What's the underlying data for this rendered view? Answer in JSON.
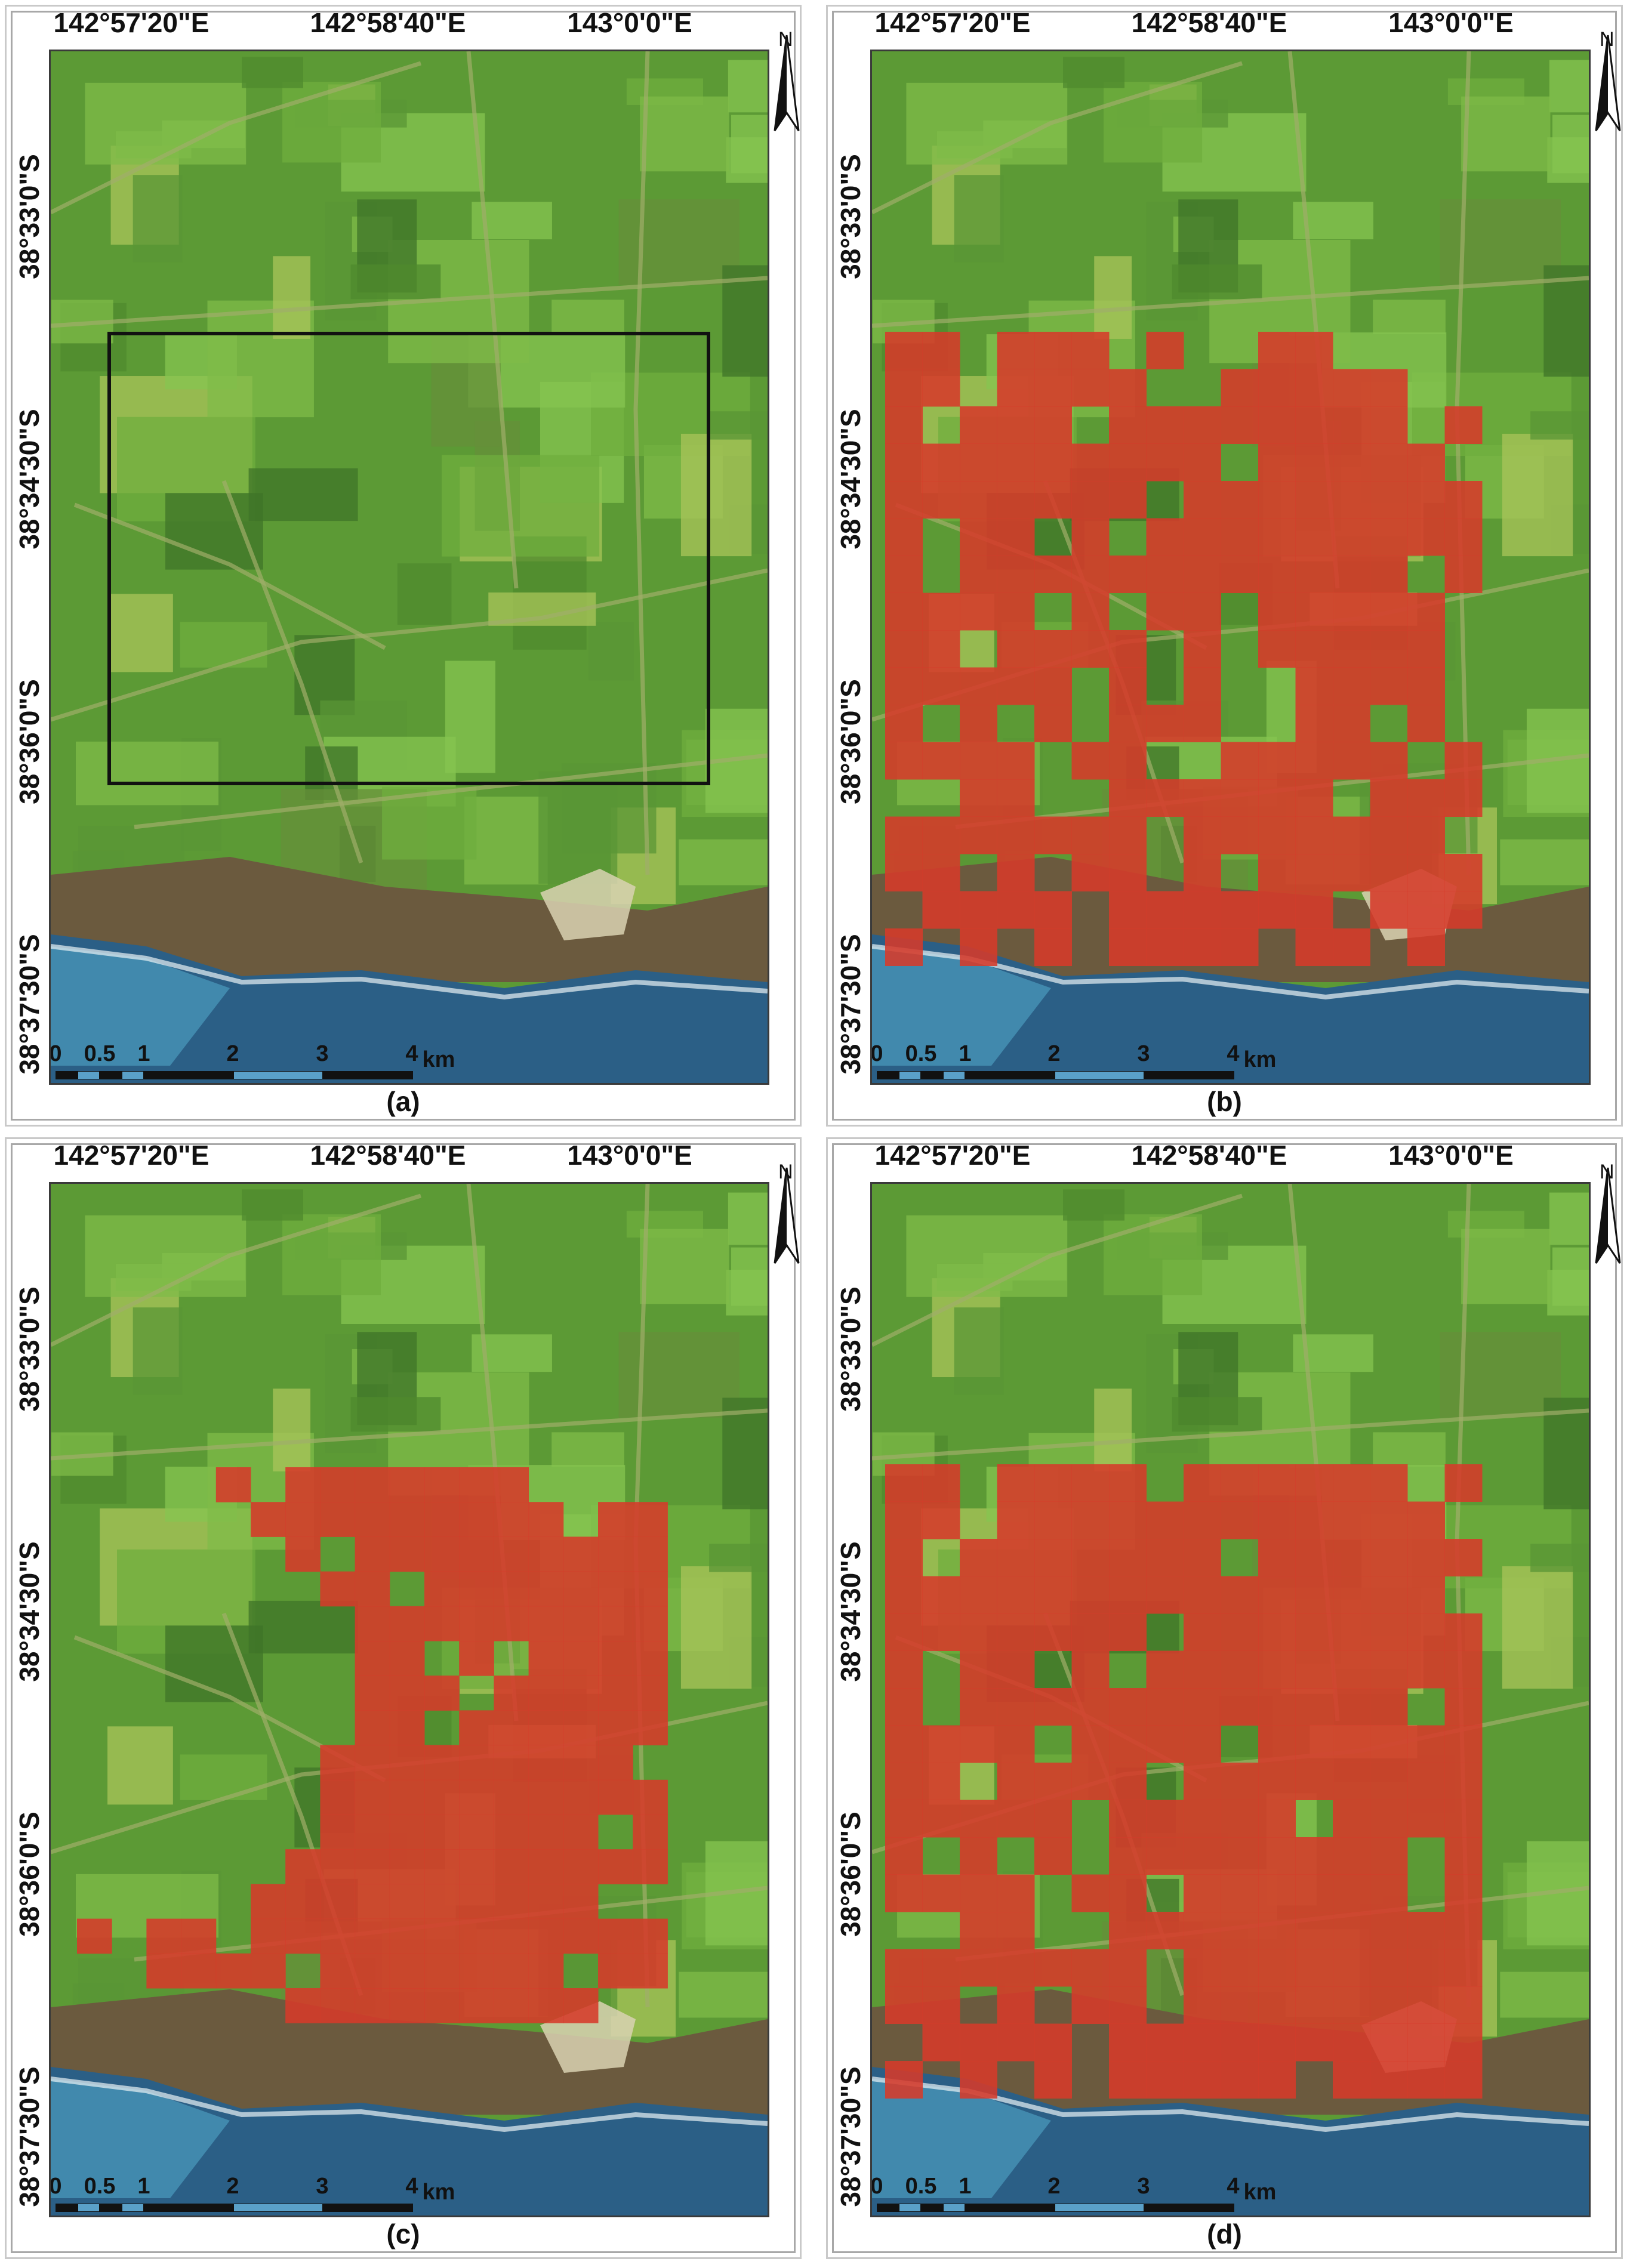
{
  "colors": {
    "land": "#5c9a35",
    "land_light": "#8ec24d",
    "land_dark": "#3d6a26",
    "sea": "#2b5f86",
    "sea_shallow": "#4c9bbd",
    "coast": "#6b5a3e",
    "burn": "#d63a2a",
    "box": "#111111"
  },
  "lon_labels": [
    "142°57'20\"E",
    "142°58'40\"E",
    "143°0'0\"E"
  ],
  "lat_labels": [
    "38°33'0\"S",
    "38°34'30\"S",
    "38°36'0\"S",
    "38°37'30\"S"
  ],
  "north_label": "N",
  "north_icon": "north-arrow-icon",
  "scale": {
    "ticks": [
      "0",
      "0.5",
      "1",
      "2",
      "3",
      "4"
    ],
    "unit": "km"
  },
  "panels": [
    {
      "id": "a",
      "caption": "(a)",
      "overlay": "box"
    },
    {
      "id": "b",
      "caption": "(b)",
      "overlay": "grid"
    },
    {
      "id": "c",
      "caption": "(c)",
      "overlay": "grid"
    },
    {
      "id": "d",
      "caption": "(d)",
      "overlay": "grid"
    }
  ],
  "burn_grids": {
    "b": [
      "11.111.1..11....",
      "11.1111..11111..",
      "1.111.11111111.1",
      "111111111.11111.",
      "1111111.11111111",
      "1.11.1.111111111",
      "1.111111111111.1",
      "1111.1.11.11111.",
      "11.1111.1.11111.",
      "11111.1.1..1111.",
      "1.1.1.111..11.1.",
      "1111.11..11111.1",
      "..11..111111.111",
      "1111111.1111111.",
      "11.1.11.1.111111",
      ".1111.111111.111",
      "1.1.1.1111.11.1."
    ],
    "c": [
      "....1.1111111....",
      ".....111111111.11",
      "......1.111111111",
      ".......11.1111111",
      "........111111111",
      "........11.1.1111",
      "........111.11111",
      "........11.111111",
      ".......111111111.",
      ".......1111111111",
      ".......11111111.1",
      "......11111111111",
      ".....1111111111..",
      "1.11.111111111111",
      "..1111.1111111.11",
      "......111111111.."
    ],
    "d": [
      "11.1111.111111.1",
      "11.111111111111.",
      "1.1111111.111111",
      "111111111111111.",
      "1111111.11111111",
      "1.11.1.111111111",
      "1.111111111111.1",
      "1111.1111.111111",
      "11.1111.11111111",
      "11111.11111.1111",
      "1.1.1.11111111.1",
      "1111.11.111111.1",
      "..11..1111111111",
      "1111111.11111111",
      "11.1.11.11111111",
      ".1111.1111111111",
      "1.1.1.11111.1111"
    ]
  }
}
